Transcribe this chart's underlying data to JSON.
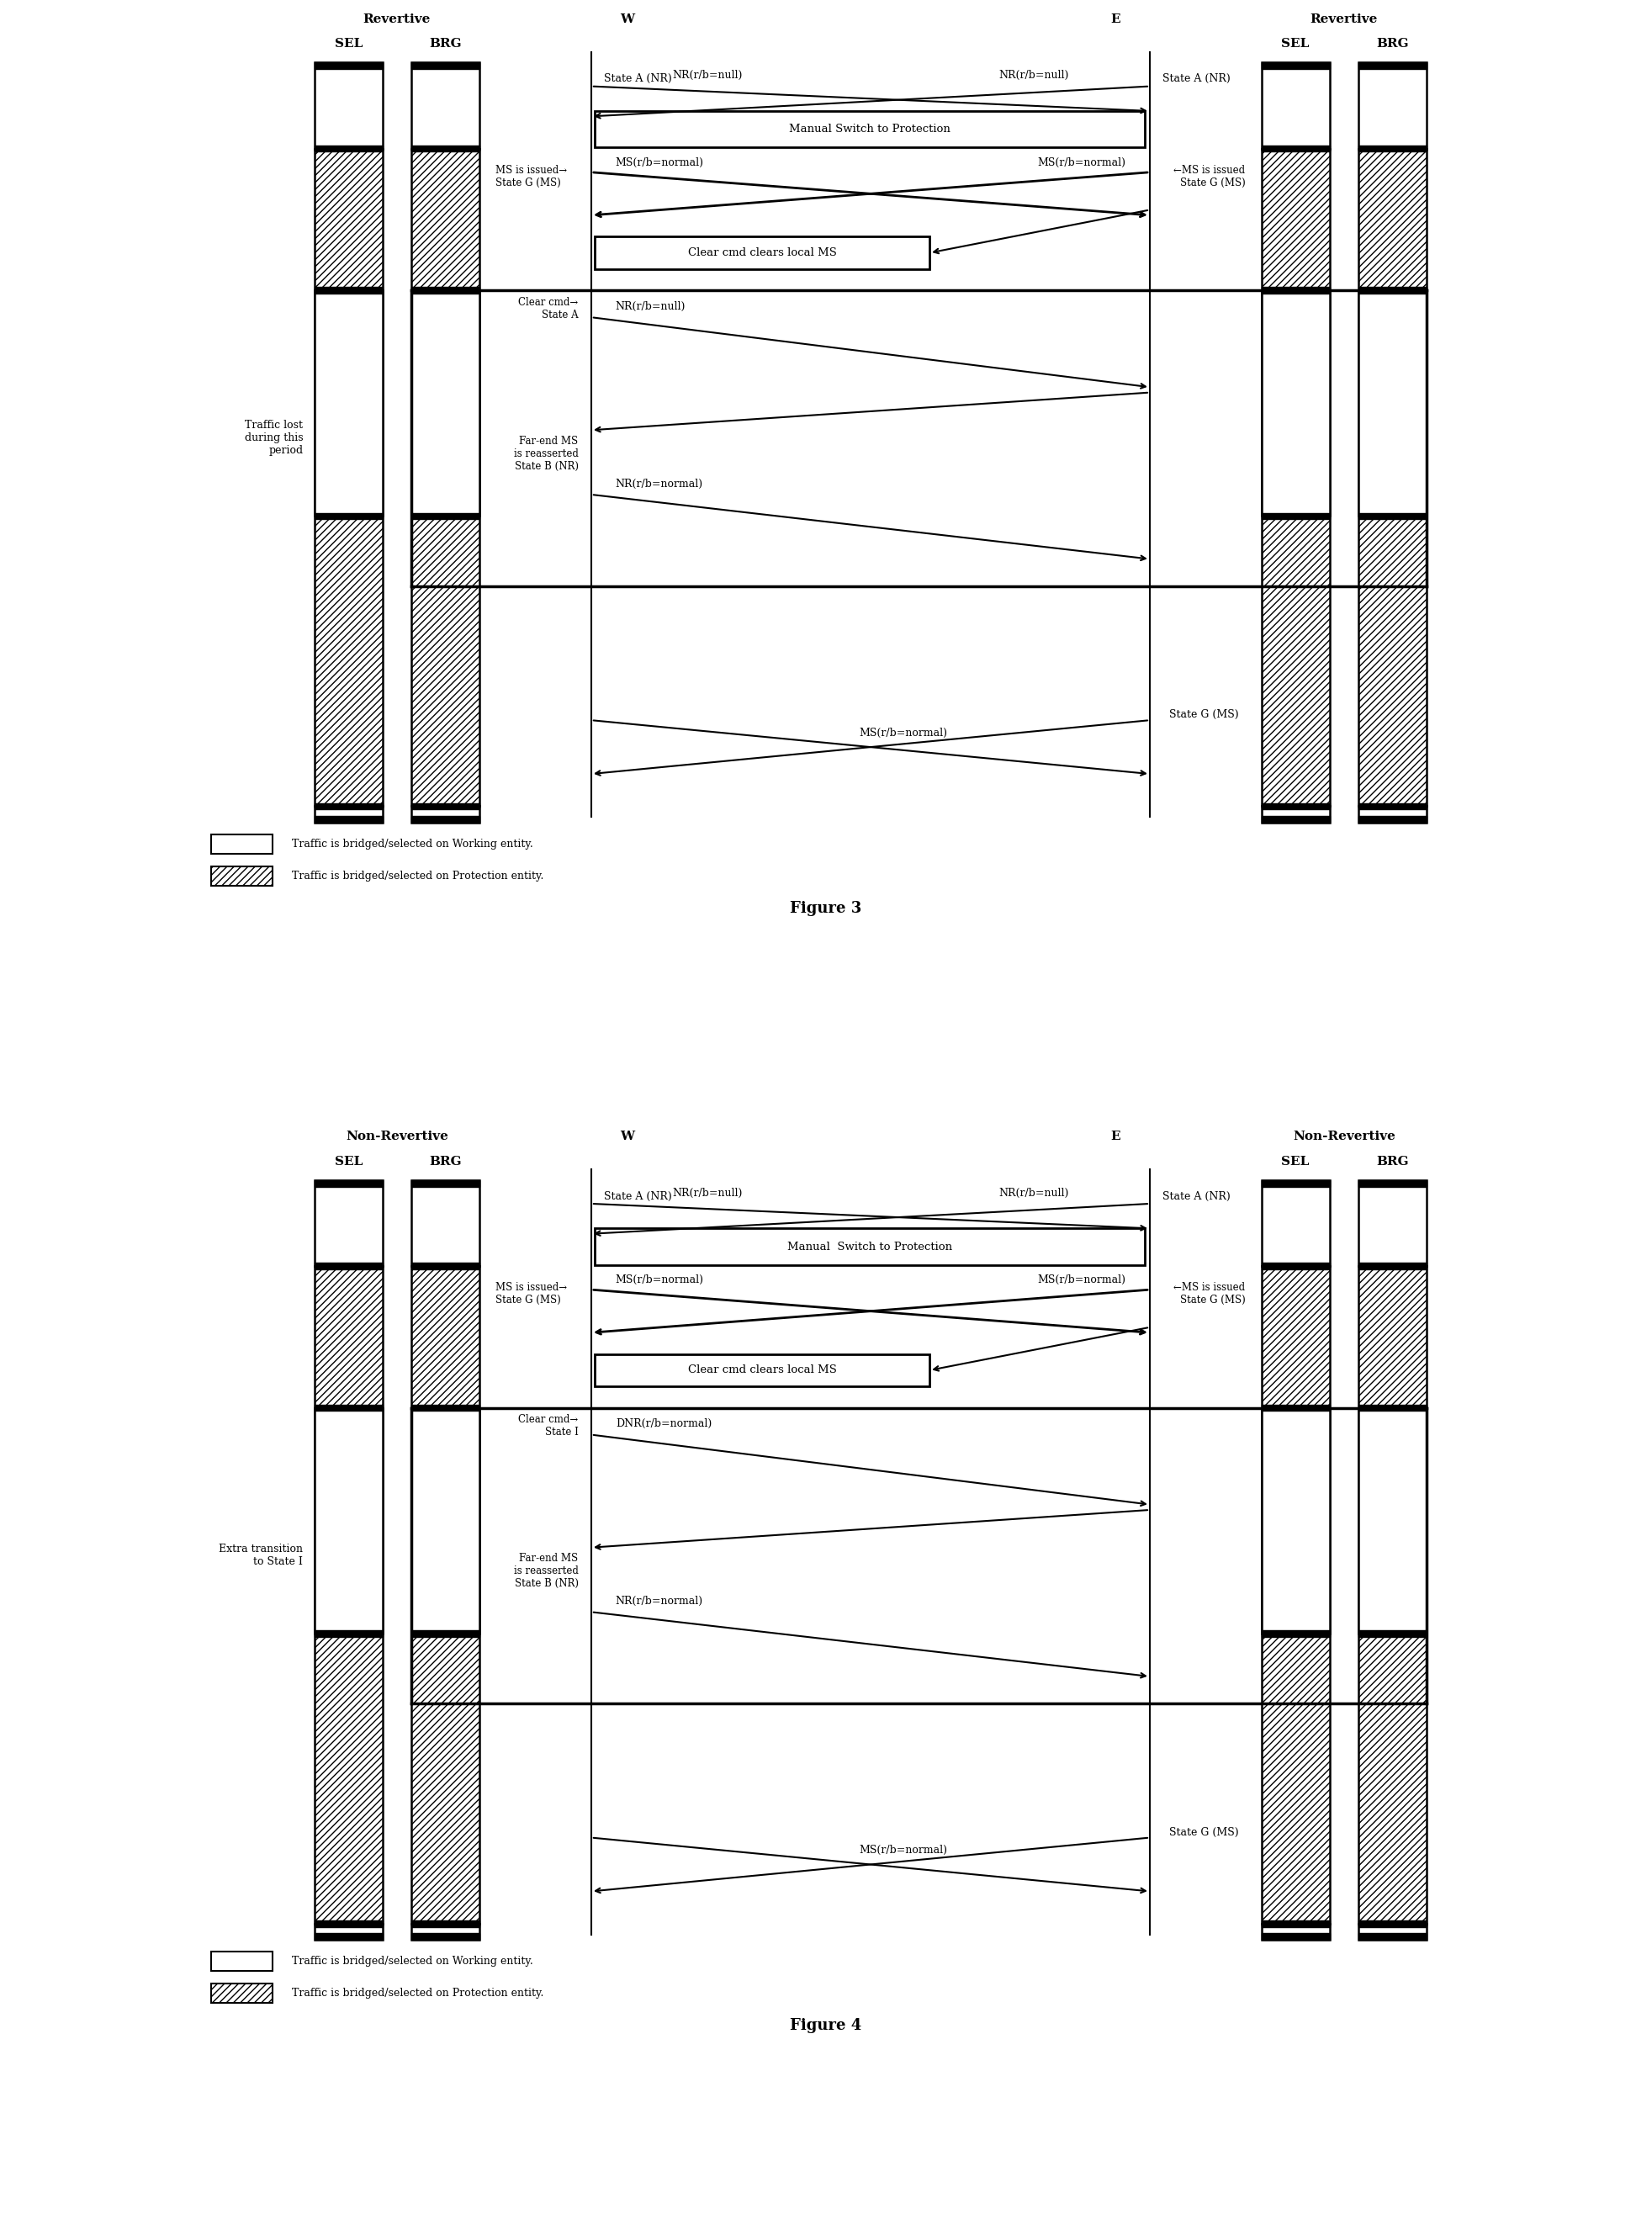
{
  "fig3": {
    "title_left": "Revertive",
    "title_right": "Revertive",
    "W_label": "W",
    "E_label": "E",
    "state_left_top": "State A (NR)",
    "state_right_top": "State A (NR)",
    "box1_text": "Manual Switch to Protection",
    "msg1_label": "NR(r/b=null)",
    "msg2_label": "NR(r/b=null)",
    "ms_issued_left": "MS is issued→\nState G (MS)",
    "ms_issued_right": "←MS is issued\nState G (MS)",
    "msg3_label": "MS(r/b=normal)",
    "msg4_label": "MS(r/b=normal)",
    "box2_text": "Clear cmd clears local MS",
    "clear_cmd_state": "Clear cmd→\nState A",
    "msg5_label": "NR(r/b=null)",
    "farend_state": "Far-end MS\nis reasserted\nState B (NR)",
    "msg6_label": "NR(r/b=normal)",
    "msg7_label": "MS(r/b=normal)",
    "state_g_ms_right": "State G (MS)",
    "side_label": "Traffic lost\nduring this\nperiod",
    "legend1": "Traffic is bridged/selected on Working entity.",
    "legend2": "Traffic is bridged/selected on Protection entity.",
    "figure_label": "Figure 3"
  },
  "fig4": {
    "title_left": "Non-Revertive",
    "title_right": "Non-Revertive",
    "W_label": "W",
    "E_label": "E",
    "state_left_top": "State A (NR)",
    "state_right_top": "State A (NR)",
    "box1_text": "Manual  Switch to Protection",
    "msg1_label": "NR(r/b=null)",
    "msg2_label": "NR(r/b=null)",
    "ms_issued_left": "MS is issued→\nState G (MS)",
    "ms_issued_right": "←MS is issued\nState G (MS)",
    "msg3_label": "MS(r/b=normal)",
    "msg4_label": "MS(r/b=normal)",
    "box2_text": "Clear cmd clears local MS",
    "clear_cmd_state": "Clear cmd→\nState I",
    "msg5_label": "DNR(r/b=normal)",
    "farend_state": "Far-end MS\nis reasserted\nState B (NR)",
    "msg6_label": "NR(r/b=normal)",
    "msg7_label": "MS(r/b=normal)",
    "state_g_ms_right": "State G (MS)",
    "side_label": "Extra transition\nto State I",
    "legend1": "Traffic is bridged/selected on Working entity.",
    "legend2": "Traffic is bridged/selected on Protection entity.",
    "figure_label": "Figure 4"
  }
}
